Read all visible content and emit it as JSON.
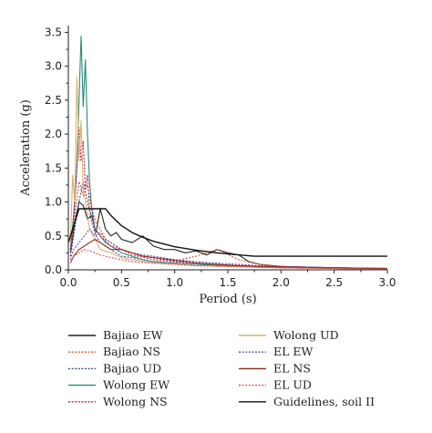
{
  "chart_data": {
    "type": "line",
    "xlabel": "Period (s)",
    "ylabel": "Acceleration (g)",
    "xlim": [
      0,
      3.0
    ],
    "ylim": [
      0,
      3.6
    ],
    "xticks": [
      "0.0",
      "0.5",
      "1.0",
      "1.5",
      "2.0",
      "2.5",
      "3.0"
    ],
    "yticks": [
      "0.0",
      "0.5",
      "1.0",
      "1.5",
      "2.0",
      "2.5",
      "3.0",
      "3.5"
    ],
    "grid": false,
    "legend_position": "bottom",
    "series": [
      {
        "name": "Bajiao EW",
        "color": "#222222",
        "dash": "solid",
        "x": [
          0.02,
          0.06,
          0.1,
          0.14,
          0.18,
          0.22,
          0.26,
          0.3,
          0.35,
          0.4,
          0.45,
          0.5,
          0.6,
          0.7,
          0.8,
          0.9,
          1.0,
          1.1,
          1.2,
          1.3,
          1.4,
          1.5,
          1.6,
          1.7,
          1.8,
          2.0,
          2.5,
          3.0
        ],
        "y": [
          0.25,
          0.7,
          1.0,
          0.95,
          0.75,
          0.8,
          0.55,
          0.9,
          0.6,
          0.5,
          0.55,
          0.45,
          0.4,
          0.5,
          0.35,
          0.3,
          0.3,
          0.25,
          0.28,
          0.22,
          0.3,
          0.25,
          0.22,
          0.12,
          0.08,
          0.05,
          0.03,
          0.02
        ]
      },
      {
        "name": "Bajiao NS",
        "color": "#d9531e",
        "dash": "dotted",
        "x": [
          0.02,
          0.06,
          0.1,
          0.14,
          0.18,
          0.22,
          0.26,
          0.3,
          0.35,
          0.4,
          0.5,
          0.6,
          0.7,
          0.8,
          0.9,
          1.0,
          1.2,
          1.4,
          1.6,
          1.8,
          2.0,
          2.5,
          3.0
        ],
        "y": [
          0.3,
          0.8,
          1.3,
          1.1,
          1.25,
          0.9,
          0.7,
          0.6,
          0.45,
          0.4,
          0.3,
          0.25,
          0.2,
          0.18,
          0.15,
          0.13,
          0.2,
          0.3,
          0.15,
          0.08,
          0.05,
          0.03,
          0.02
        ]
      },
      {
        "name": "Bajiao UD",
        "color": "#3b4a9b",
        "dash": "dotted",
        "x": [
          0.02,
          0.06,
          0.1,
          0.14,
          0.18,
          0.22,
          0.26,
          0.3,
          0.4,
          0.5,
          0.6,
          0.8,
          1.0,
          1.2,
          1.4,
          1.6,
          1.8,
          2.0,
          2.5,
          3.0
        ],
        "y": [
          0.2,
          0.6,
          1.0,
          1.3,
          1.0,
          0.7,
          0.5,
          0.4,
          0.3,
          0.2,
          0.18,
          0.12,
          0.1,
          0.08,
          0.07,
          0.05,
          0.04,
          0.03,
          0.02,
          0.01
        ]
      },
      {
        "name": "Wolong EW",
        "color": "#2a8a7a",
        "dash": "solid",
        "x": [
          0.02,
          0.05,
          0.08,
          0.1,
          0.12,
          0.14,
          0.16,
          0.18,
          0.2,
          0.22,
          0.25,
          0.3,
          0.35,
          0.4,
          0.5,
          0.6,
          0.7,
          0.8,
          1.0,
          1.2,
          1.5,
          2.0,
          2.5,
          3.0
        ],
        "y": [
          0.3,
          0.8,
          1.5,
          2.5,
          3.45,
          2.4,
          3.1,
          2.0,
          1.3,
          0.9,
          0.6,
          0.5,
          0.4,
          0.35,
          0.25,
          0.2,
          0.15,
          0.12,
          0.1,
          0.08,
          0.06,
          0.04,
          0.02,
          0.01
        ]
      },
      {
        "name": "Wolong NS",
        "color": "#c2185b",
        "dash": "dotted",
        "x": [
          0.02,
          0.05,
          0.08,
          0.1,
          0.12,
          0.14,
          0.16,
          0.18,
          0.2,
          0.25,
          0.3,
          0.4,
          0.5,
          0.6,
          0.8,
          1.0,
          1.2,
          1.5,
          2.0,
          2.5,
          3.0
        ],
        "y": [
          0.3,
          0.7,
          1.5,
          2.1,
          1.6,
          1.9,
          1.2,
          1.4,
          0.9,
          0.6,
          0.5,
          0.35,
          0.3,
          0.22,
          0.15,
          0.12,
          0.1,
          0.07,
          0.05,
          0.03,
          0.02
        ]
      },
      {
        "name": "Wolong UD",
        "color": "#d7b46a",
        "dash": "solid",
        "x": [
          0.02,
          0.04,
          0.06,
          0.08,
          0.1,
          0.12,
          0.14,
          0.16,
          0.18,
          0.2,
          0.25,
          0.3,
          0.4,
          0.5,
          0.6,
          0.8,
          1.0,
          1.2,
          1.5,
          2.0,
          2.5,
          3.0
        ],
        "y": [
          0.4,
          1.4,
          1.0,
          2.85,
          1.6,
          2.2,
          1.2,
          1.0,
          0.8,
          0.6,
          0.45,
          0.3,
          0.25,
          0.18,
          0.15,
          0.1,
          0.08,
          0.06,
          0.05,
          0.03,
          0.02,
          0.01
        ]
      },
      {
        "name": "EL EW",
        "color": "#6a4aa0",
        "dash": "dotted",
        "x": [
          0.02,
          0.05,
          0.1,
          0.15,
          0.2,
          0.25,
          0.3,
          0.35,
          0.4,
          0.5,
          0.6,
          0.7,
          0.8,
          1.0,
          1.2,
          1.4,
          1.6,
          1.8,
          2.0,
          2.5,
          3.0
        ],
        "y": [
          0.15,
          0.3,
          0.4,
          0.5,
          0.6,
          0.5,
          0.55,
          0.45,
          0.4,
          0.3,
          0.25,
          0.22,
          0.2,
          0.15,
          0.12,
          0.1,
          0.08,
          0.06,
          0.05,
          0.03,
          0.02
        ]
      },
      {
        "name": "EL NS",
        "color": "#8b2a1a",
        "dash": "solid",
        "x": [
          0.02,
          0.05,
          0.1,
          0.15,
          0.2,
          0.25,
          0.3,
          0.35,
          0.4,
          0.5,
          0.6,
          0.7,
          0.8,
          1.0,
          1.2,
          1.4,
          1.6,
          1.8,
          2.0,
          2.5,
          3.0
        ],
        "y": [
          0.1,
          0.2,
          0.3,
          0.35,
          0.4,
          0.45,
          0.4,
          0.35,
          0.3,
          0.3,
          0.25,
          0.2,
          0.18,
          0.14,
          0.1,
          0.08,
          0.06,
          0.05,
          0.04,
          0.03,
          0.02
        ]
      },
      {
        "name": "EL UD",
        "color": "#e04a5a",
        "dash": "dotted",
        "x": [
          0.02,
          0.05,
          0.1,
          0.15,
          0.2,
          0.25,
          0.3,
          0.4,
          0.5,
          0.6,
          0.8,
          1.0,
          1.2,
          1.5,
          2.0,
          2.5,
          3.0
        ],
        "y": [
          0.1,
          0.2,
          0.25,
          0.3,
          0.28,
          0.25,
          0.22,
          0.18,
          0.15,
          0.12,
          0.1,
          0.08,
          0.06,
          0.05,
          0.03,
          0.02,
          0.01
        ]
      },
      {
        "name": "Guidelines, soil II",
        "color": "#111111",
        "dash": "solid",
        "x": [
          0.0,
          0.1,
          0.1,
          0.35,
          0.4,
          0.5,
          0.6,
          0.7,
          0.8,
          0.9,
          1.0,
          1.2,
          1.4,
          1.6,
          1.75,
          2.0,
          2.5,
          3.0
        ],
        "y": [
          0.4,
          0.9,
          0.9,
          0.9,
          0.8,
          0.65,
          0.55,
          0.48,
          0.42,
          0.38,
          0.34,
          0.29,
          0.25,
          0.22,
          0.2,
          0.2,
          0.2,
          0.2
        ]
      }
    ]
  }
}
